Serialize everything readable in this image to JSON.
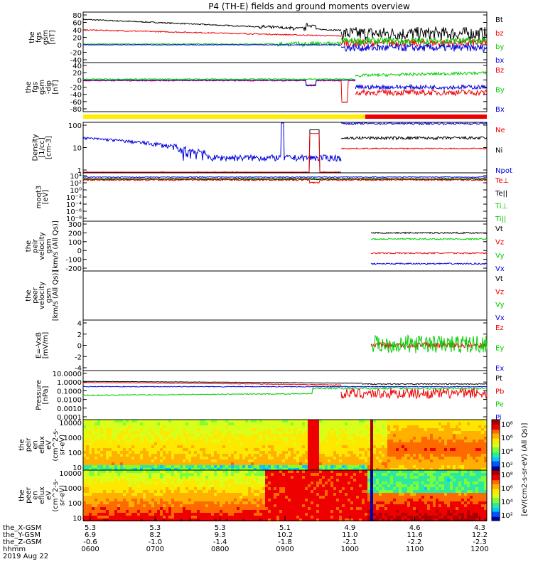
{
  "title": "P4 (TH-E) fields and ground moments overview",
  "colors": {
    "black": "#000000",
    "red": "#ee0000",
    "green": "#00cc00",
    "blue": "#0000dd",
    "yellow": "#ffee00",
    "barred": "#ee0000"
  },
  "chart_data": [
    {
      "type": "line",
      "id": "fgs_gsm",
      "ylabel": [
        "the",
        "fgs",
        "gsm",
        "[nT]"
      ],
      "ylim": [
        -40,
        80
      ],
      "yticks": [
        "80",
        "60",
        "40",
        "20",
        "0",
        "-20",
        "-40"
      ],
      "series": [
        {
          "name": "Bt",
          "color": "black"
        },
        {
          "name": "bz",
          "color": "red"
        },
        {
          "name": "by",
          "color": "green"
        },
        {
          "name": "bx",
          "color": "blue"
        }
      ]
    },
    {
      "type": "line",
      "id": "fgs_gsm_dip",
      "ylabel": [
        "the",
        "fgs",
        "gsm",
        "-dip",
        "[nT]"
      ],
      "ylim": [
        -90,
        40
      ],
      "yticks": [
        "40",
        "20",
        "0",
        "-20",
        "-40",
        "-60",
        "-80"
      ],
      "series": [
        {
          "name": "Bz",
          "color": "red"
        },
        {
          "name": "By",
          "color": "green"
        },
        {
          "name": "Bx",
          "color": "blue"
        }
      ]
    },
    {
      "type": "line",
      "id": "density",
      "log": true,
      "ylabel": [
        "Density",
        "[1/cc]",
        "[cm-3]"
      ],
      "ylim": [
        0.1,
        300
      ],
      "yticks": [
        "100",
        "10",
        "1"
      ],
      "series": [
        {
          "name": "Ne",
          "color": "red"
        },
        {
          "name": "Ni",
          "color": "black"
        },
        {
          "name": "Npot",
          "color": "blue"
        }
      ]
    },
    {
      "type": "line",
      "id": "temperature",
      "log": true,
      "ylabel": [
        "moqt3",
        "[eV]"
      ],
      "yticks": [
        "10⁴",
        "10²",
        "10⁰",
        "10⁻²",
        "10⁻⁴",
        "10⁻⁶",
        "10⁻⁸"
      ],
      "series": [
        {
          "name": "Te⊥",
          "color": "red"
        },
        {
          "name": "Te||",
          "color": "black"
        },
        {
          "name": "Ti⊥",
          "color": "green"
        },
        {
          "name": "Ti||",
          "color": "green"
        }
      ]
    },
    {
      "type": "line",
      "id": "peir_velocity",
      "ylabel": [
        "the",
        "peir",
        "velocity",
        "gsm",
        "[km/s (All Qs)]"
      ],
      "ylim": [
        -200,
        300
      ],
      "yticks": [
        "300",
        "200",
        "100",
        "0",
        "-100",
        "-200"
      ],
      "series": [
        {
          "name": "Vt",
          "color": "black",
          "values": [
            200,
            200,
            200,
            200
          ]
        },
        {
          "name": "Vz",
          "color": "red",
          "values": [
            -30,
            -30,
            -30,
            -30
          ]
        },
        {
          "name": "Vy",
          "color": "green",
          "values": [
            130,
            130,
            130,
            130
          ]
        },
        {
          "name": "Vx",
          "color": "blue",
          "values": [
            -150,
            -150,
            -150,
            -150
          ]
        }
      ]
    },
    {
      "type": "line",
      "id": "peer_velocity",
      "ylabel": [
        "the",
        "peer",
        "velocity",
        "gsm",
        "[km/s (All Qs)]"
      ],
      "series": [
        {
          "name": "Vt",
          "color": "black"
        },
        {
          "name": "Vz",
          "color": "red"
        },
        {
          "name": "Vy",
          "color": "green"
        },
        {
          "name": "Vx",
          "color": "blue"
        }
      ]
    },
    {
      "type": "line",
      "id": "efield",
      "ylabel": [
        "E=-VxB",
        "[mV/m]"
      ],
      "ylim": [
        -5,
        5
      ],
      "yticks": [
        "4",
        "2",
        "0",
        "-2",
        "-4"
      ],
      "series": [
        {
          "name": "Ez",
          "color": "red",
          "values": [
            0,
            0.3,
            0.2,
            0
          ]
        },
        {
          "name": "Ey",
          "color": "green",
          "values": [
            0,
            1,
            -0.5,
            -1.5
          ]
        },
        {
          "name": "Ex",
          "color": "blue"
        }
      ]
    },
    {
      "type": "line",
      "id": "pressure",
      "log": true,
      "ylabel": [
        "Pressure",
        "[nPa]"
      ],
      "ylim": [
        0.0001,
        10
      ],
      "yticks": [
        "10.0000",
        "1.0000",
        "0.1000",
        "0.0100",
        "0.0010",
        "0.0001"
      ],
      "series": [
        {
          "name": "Pt",
          "color": "black"
        },
        {
          "name": "Pb",
          "color": "red"
        },
        {
          "name": "Pe",
          "color": "green"
        },
        {
          "name": "Pi",
          "color": "blue"
        }
      ]
    },
    {
      "type": "heatmap",
      "id": "peir_efl",
      "ylabel": [
        "the",
        "peir",
        "en",
        "eflux",
        "eV",
        "(cm^2-s-",
        "sr-eV)"
      ],
      "yticks": [
        "10000",
        "1000",
        "100",
        "10"
      ],
      "colorbar_ticks": [
        "10⁸",
        "10⁶",
        "10⁴",
        "10²"
      ]
    },
    {
      "type": "heatmap",
      "id": "peer_efl",
      "ylabel": [
        "the",
        "peer",
        "en",
        "eflux",
        "eV",
        "(cm^2-s-",
        "sr-eV)"
      ],
      "yticks": [
        "10000",
        "1000",
        "100",
        "10"
      ],
      "colorbar_ticks": [
        "10⁸",
        "10⁶",
        "10⁴",
        "10²"
      ]
    }
  ],
  "colorbar_label": "[eV/(cm2-s-sr-eV) (All Qs)]",
  "footer": {
    "row_labels": [
      "the_X-GSM",
      "the_Y-GSM",
      "the_Z-GSM",
      "hhmm",
      "2019 Aug 22"
    ],
    "columns": [
      [
        "5.3",
        "6.9",
        "-0.6",
        "0600"
      ],
      [
        "5.3",
        "8.2",
        "-1.0",
        "0700"
      ],
      [
        "5.3",
        "9.3",
        "-1.4",
        "0800"
      ],
      [
        "5.1",
        "10.2",
        "-1.8",
        "0900"
      ],
      [
        "4.9",
        "11.0",
        "-2.1",
        "1000"
      ],
      [
        "4.6",
        "11.6",
        "-2.2",
        "1100"
      ],
      [
        "4.3",
        "12.2",
        "-2.3",
        "1200"
      ]
    ]
  }
}
